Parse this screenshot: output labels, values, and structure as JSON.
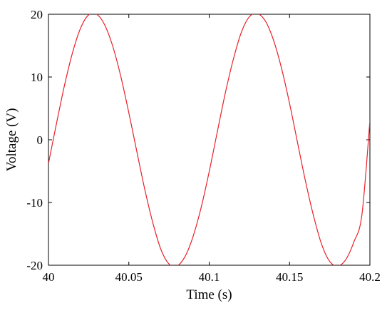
{
  "chart_data": {
    "type": "line",
    "title": "",
    "xlabel": "Time (s)",
    "ylabel": "Voltage (V)",
    "xlim": [
      40,
      40.2
    ],
    "ylim": [
      -20,
      20
    ],
    "xticks": [
      40,
      40.05,
      40.1,
      40.15,
      40.2
    ],
    "xtick_labels": [
      "40",
      "40.05",
      "40.1",
      "40.15",
      "40.2"
    ],
    "yticks": [
      -20,
      -10,
      0,
      10,
      20
    ],
    "ytick_labels": [
      "-20",
      "-10",
      "0",
      "10",
      "20"
    ],
    "grid": false,
    "box": true,
    "series": [
      {
        "color": "#e8212a",
        "x": [
          40.0,
          40.005,
          40.01,
          40.015,
          40.02,
          40.025,
          40.03,
          40.035,
          40.04,
          40.045,
          40.05,
          40.055,
          40.06,
          40.065,
          40.07,
          40.075,
          40.08,
          40.085,
          40.09,
          40.095,
          40.1,
          40.105,
          40.11,
          40.115,
          40.12,
          40.125,
          40.13,
          40.135,
          40.14,
          40.145,
          40.15,
          40.155,
          40.16,
          40.165,
          40.17,
          40.175,
          40.18,
          40.185,
          40.19,
          40.195,
          40.2
        ],
        "y": [
          -3.8,
          2.6,
          8.7,
          13.9,
          17.8,
          19.9,
          20.0,
          18.3,
          14.9,
          10.1,
          4.3,
          -1.9,
          -8.0,
          -13.3,
          -17.5,
          -19.8,
          -20.1,
          -18.6,
          -15.4,
          -10.8,
          -5.1,
          1.2,
          7.4,
          12.8,
          17.1,
          19.6,
          20.1,
          18.9,
          15.9,
          11.4,
          5.8,
          -0.5,
          -6.7,
          -12.2,
          -16.7,
          -19.4,
          -20.1,
          -19.1,
          -16.3,
          -12.0,
          3.0
        ]
      }
    ]
  }
}
